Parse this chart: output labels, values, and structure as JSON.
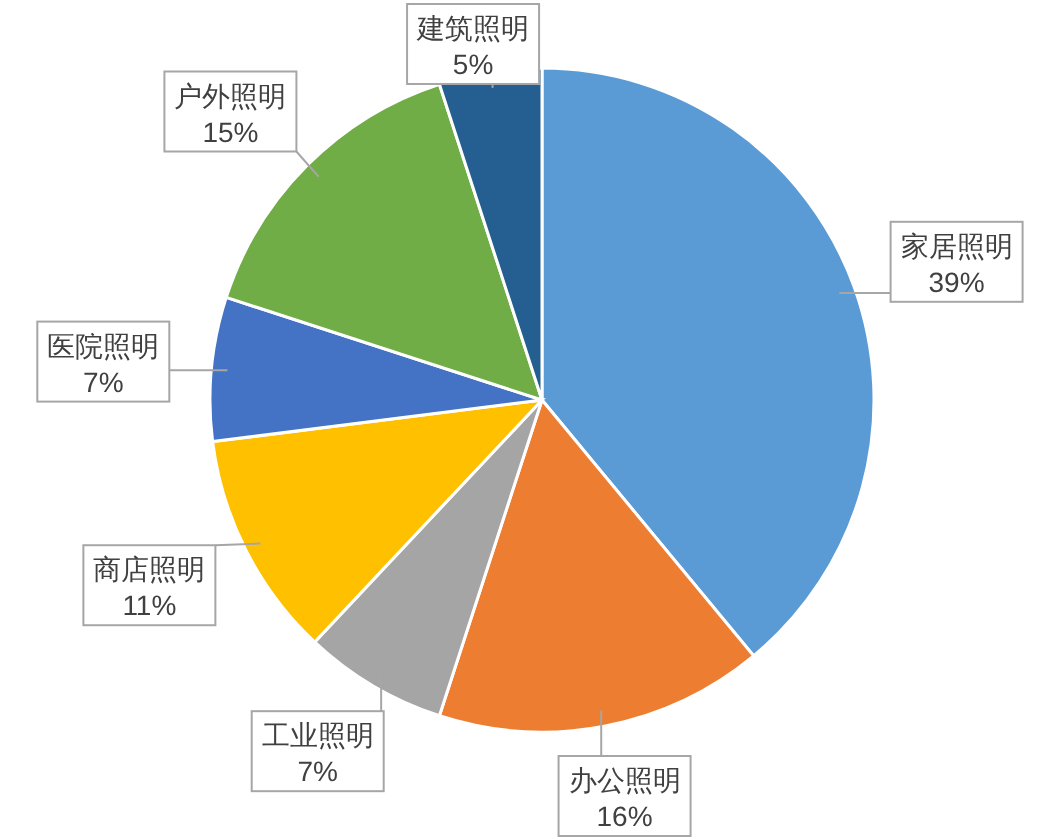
{
  "chart_data": {
    "type": "pie",
    "categories": [
      "家居照明",
      "办公照明",
      "工业照明",
      "商店照明",
      "医院照明",
      "户外照明",
      "建筑照明"
    ],
    "values": [
      39,
      16,
      7,
      11,
      7,
      15,
      5
    ],
    "value_labels": [
      "39%",
      "16%",
      "7%",
      "11%",
      "7%",
      "15%",
      "5%"
    ],
    "colors": [
      "#5b9bd5",
      "#ed7d31",
      "#a5a5a5",
      "#ffc000",
      "#4472c4",
      "#70ad47",
      "#255e91"
    ]
  }
}
